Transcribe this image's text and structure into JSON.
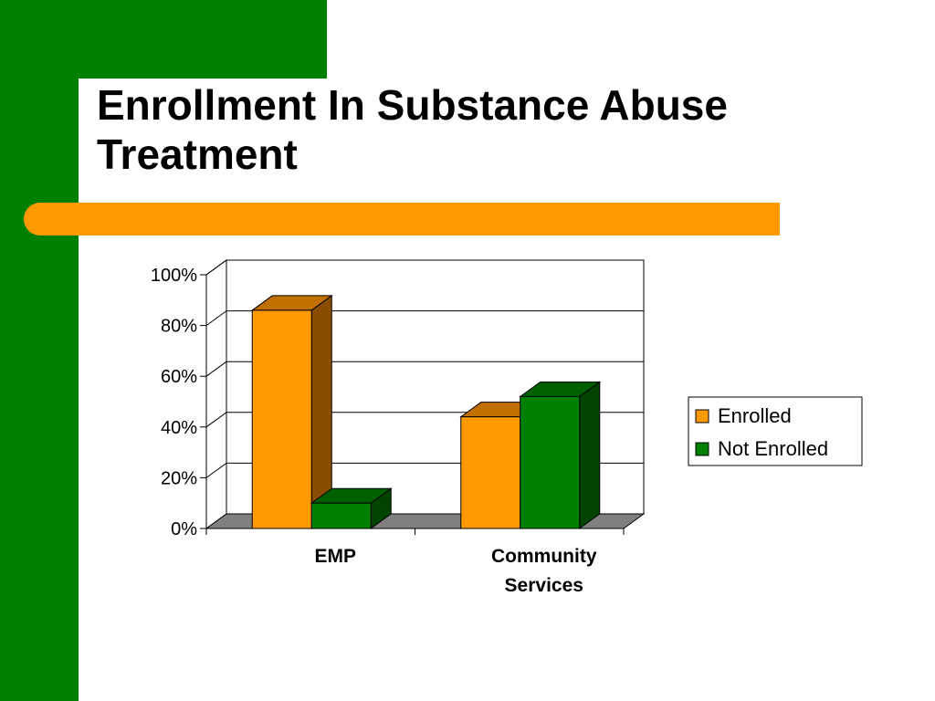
{
  "slide": {
    "title_lines": [
      "Enrollment In Substance Abuse",
      "Treatment"
    ]
  },
  "theme": {
    "green": "#008000",
    "orange": "#ff9900",
    "floor_gray": "#808080"
  },
  "chart_data": {
    "type": "bar",
    "title": "",
    "xlabel": "",
    "ylabel": "",
    "categories": [
      [
        "EMP"
      ],
      [
        "Community",
        "Services"
      ]
    ],
    "series": [
      {
        "name": "Enrolled",
        "values": [
          86,
          44
        ],
        "color": "#ff9900",
        "side_color": "#8a4d00",
        "top_color": "#c06f00"
      },
      {
        "name": "Not Enrolled",
        "values": [
          10,
          52
        ],
        "color": "#008000",
        "side_color": "#004400",
        "top_color": "#006000"
      }
    ],
    "yticks": [
      "0%",
      "20%",
      "40%",
      "60%",
      "80%",
      "100%"
    ],
    "ylim": [
      0,
      100
    ],
    "grid": true,
    "legend": "right"
  }
}
